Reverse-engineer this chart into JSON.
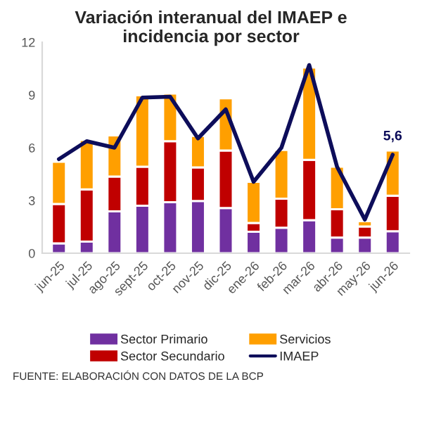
{
  "chart_data": {
    "type": "bar",
    "stacked": true,
    "title": "Variación interanual del IMAEP e\nincidencia por sector",
    "categories": [
      "jun-25",
      "jul-25",
      "ago-25",
      "sept-25",
      "oct-25",
      "nov-25",
      "dic-25",
      "ene-26",
      "feb-26",
      "mar-26",
      "abr-26",
      "may-26",
      "jun-26"
    ],
    "series": [
      {
        "name": "Sector Primario",
        "color": "#7030a0",
        "values": [
          0.56,
          0.66,
          2.38,
          2.7,
          2.9,
          2.97,
          2.57,
          1.22,
          1.45,
          1.88,
          0.89,
          0.89,
          1.25
        ]
      },
      {
        "name": "Sector Secundario",
        "color": "#c00000",
        "values": [
          2.24,
          2.97,
          1.98,
          2.22,
          3.47,
          1.91,
          3.27,
          0.5,
          1.65,
          3.43,
          1.61,
          0.63,
          2.02
        ]
      },
      {
        "name": "Servicios",
        "color": "#ff9f00",
        "values": [
          2.4,
          2.81,
          2.34,
          4.06,
          2.71,
          1.79,
          2.97,
          2.34,
          2.77,
          5.25,
          2.42,
          0.3,
          2.57
        ]
      },
      {
        "name": "IMAEP",
        "type": "line",
        "color": "#0d0d5a",
        "values": [
          5.35,
          6.37,
          6.0,
          8.85,
          8.9,
          6.53,
          8.18,
          4.06,
          6.0,
          10.7,
          4.92,
          1.91,
          5.6
        ]
      }
    ],
    "ylim": [
      0,
      12
    ],
    "yticks": [
      0,
      3,
      6,
      9,
      12
    ],
    "grid": false,
    "legend": "bottom",
    "annotations": [
      {
        "text": "5,6",
        "x": "jun-26",
        "y": 5.6
      },
      "FUENTE: ELABORACIÓN CON DATOS DE LA BCP"
    ]
  }
}
